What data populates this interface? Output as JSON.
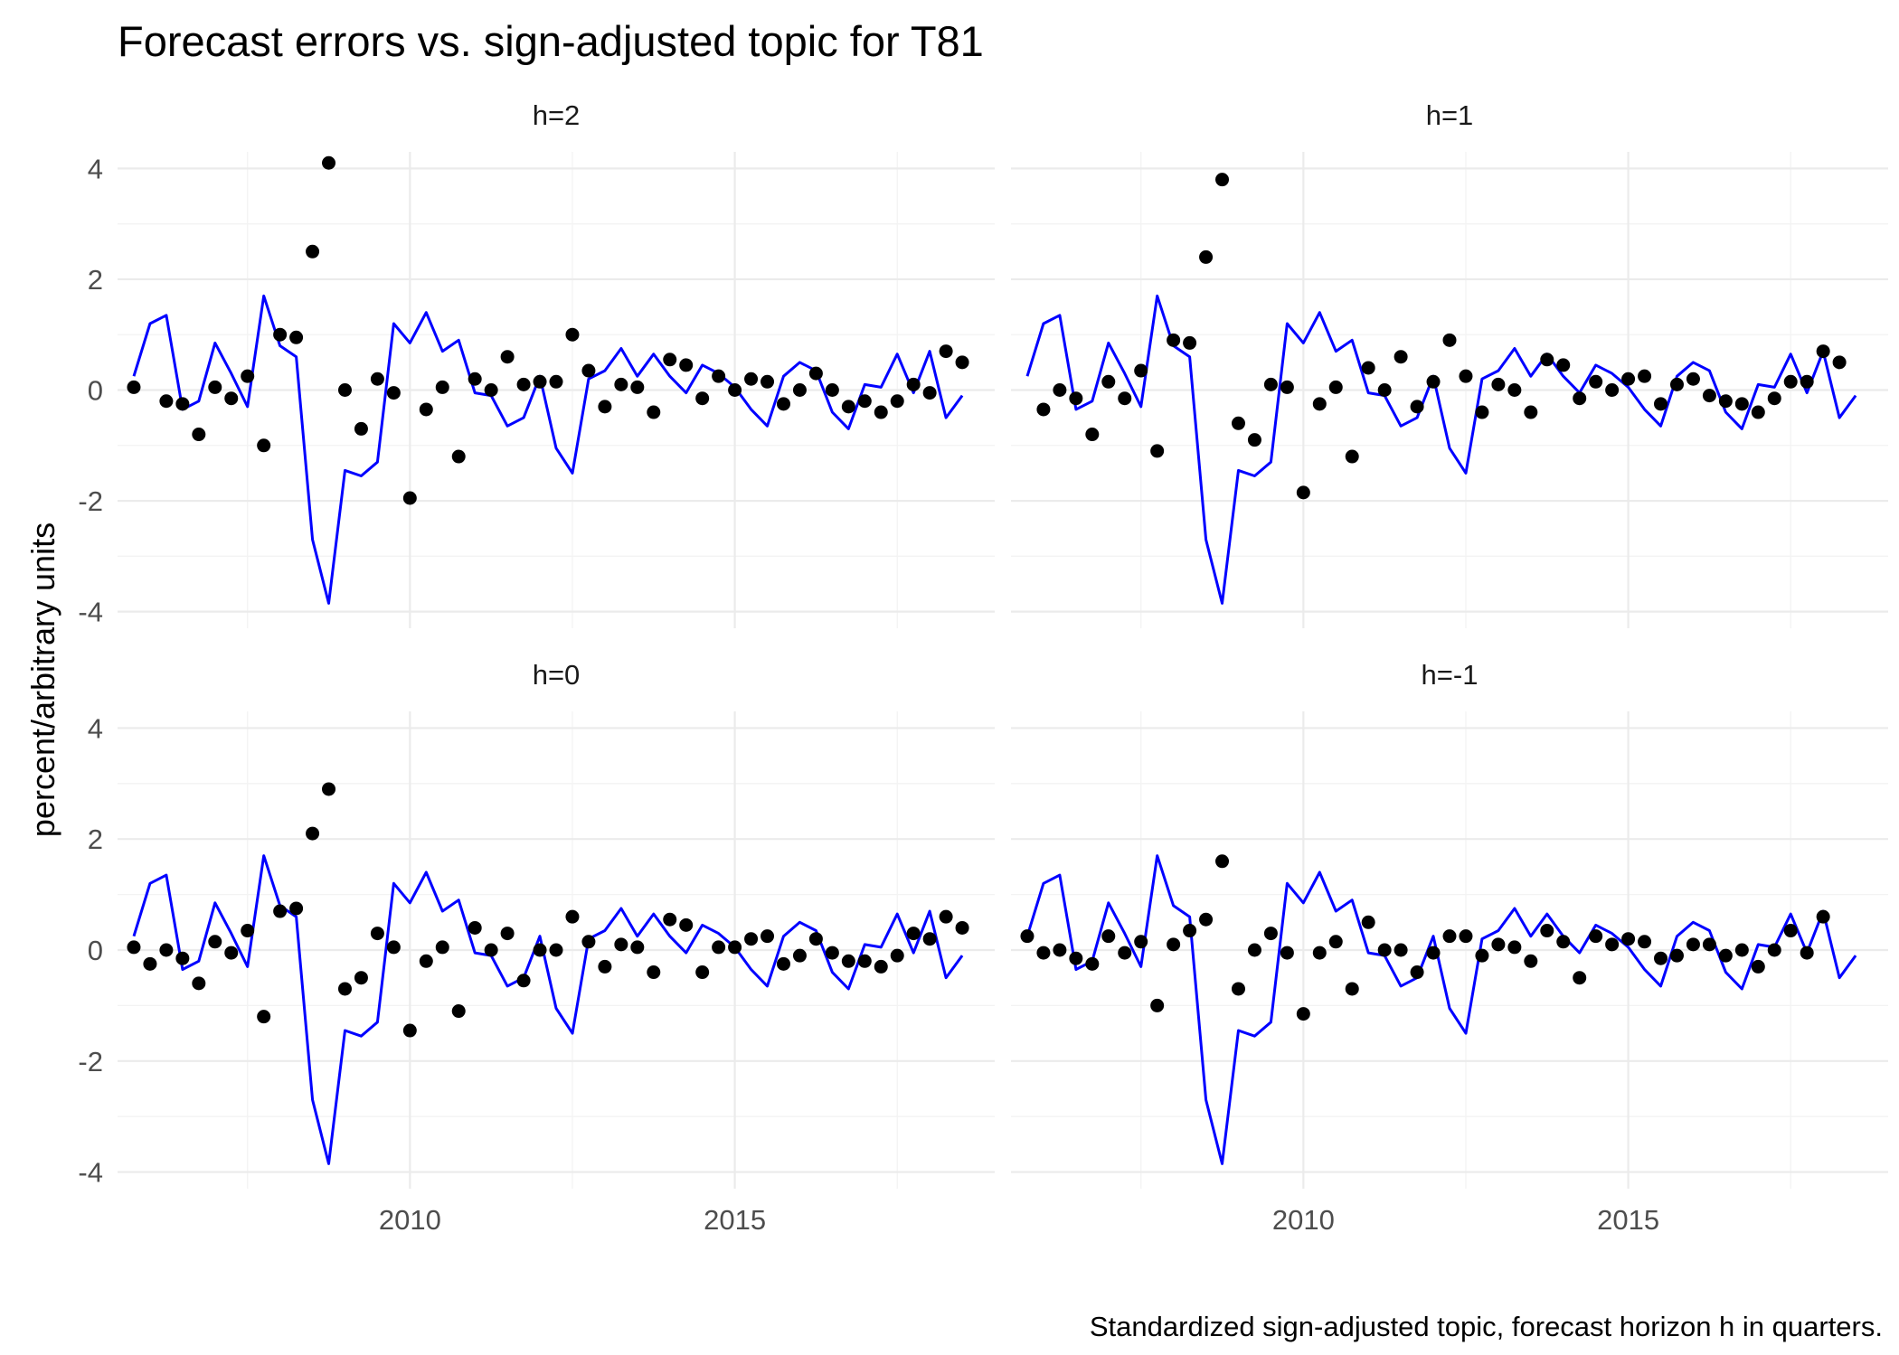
{
  "colors": {
    "line": "#0000ff",
    "points": "#000000",
    "grid": "#ebebeb",
    "background": "#ffffff"
  },
  "chart_data": {
    "type": "line+scatter",
    "title": "Forecast errors vs. sign-adjusted topic for T81",
    "ylabel": "percent/arbitrary units",
    "xlabel": "",
    "caption": "Standardized sign-adjusted topic, forecast horizon h in quarters.",
    "xlim": [
      2005.5,
      2019.0
    ],
    "ylim": [
      -4.3,
      4.3
    ],
    "x_ticks": [
      2010,
      2015
    ],
    "y_ticks": [
      -4,
      -2,
      0,
      2,
      4
    ],
    "layout": "2x2 facets, shared x and y axes, grid on",
    "line_series": {
      "name": "Standardized sign-adjusted topic",
      "color": "#0000ff",
      "x": [
        2005.75,
        2006.0,
        2006.25,
        2006.5,
        2006.75,
        2007.0,
        2007.25,
        2007.5,
        2007.75,
        2008.0,
        2008.25,
        2008.5,
        2008.75,
        2009.0,
        2009.25,
        2009.5,
        2009.75,
        2010.0,
        2010.25,
        2010.5,
        2010.75,
        2011.0,
        2011.25,
        2011.5,
        2011.75,
        2012.0,
        2012.25,
        2012.5,
        2012.75,
        2013.0,
        2013.25,
        2013.5,
        2013.75,
        2014.0,
        2014.25,
        2014.5,
        2014.75,
        2015.0,
        2015.25,
        2015.5,
        2015.75,
        2016.0,
        2016.25,
        2016.5,
        2016.75,
        2017.0,
        2017.25,
        2017.5,
        2017.75,
        2018.0,
        2018.25,
        2018.5,
        2018.75
      ],
      "values": [
        0.25,
        1.2,
        1.35,
        -0.35,
        -0.2,
        0.85,
        0.3,
        -0.3,
        1.7,
        0.8,
        0.6,
        -2.7,
        -3.85,
        -1.45,
        -1.55,
        -1.3,
        1.2,
        0.85,
        1.4,
        0.7,
        0.9,
        -0.05,
        -0.1,
        -0.65,
        -0.5,
        0.25,
        -1.05,
        -1.5,
        0.2,
        0.35,
        0.75,
        0.25,
        0.65,
        0.25,
        -0.05,
        0.45,
        0.3,
        0.05,
        -0.35,
        -0.65,
        0.25,
        0.5,
        0.35,
        -0.4,
        -0.7,
        0.1,
        0.05,
        0.65,
        -0.05,
        0.7,
        -0.5,
        -0.1,
        null
      ]
    },
    "facets": [
      {
        "label": "h=2",
        "points_x": [
          2005.75,
          2006.25,
          2006.5,
          2006.75,
          2007.0,
          2007.25,
          2007.5,
          2007.75,
          2008.0,
          2008.25,
          2008.5,
          2008.75,
          2009.0,
          2009.25,
          2009.5,
          2009.75,
          2010.0,
          2010.25,
          2010.5,
          2010.75,
          2011.0,
          2011.25,
          2011.5,
          2011.75,
          2012.0,
          2012.25,
          2012.5,
          2012.75,
          2013.0,
          2013.25,
          2013.5,
          2013.75,
          2014.0,
          2014.25,
          2014.5,
          2014.75,
          2015.0,
          2015.25,
          2015.5,
          2015.75,
          2016.0,
          2016.25,
          2016.5,
          2016.75,
          2017.0,
          2017.25,
          2017.5,
          2017.75,
          2018.0,
          2018.25,
          2018.5,
          2018.75
        ],
        "points_y": [
          0.05,
          -0.2,
          -0.25,
          -0.8,
          0.05,
          -0.15,
          0.25,
          -1.0,
          1.0,
          0.95,
          2.5,
          4.1,
          -0.0,
          -0.7,
          0.2,
          -0.05,
          -1.95,
          -0.35,
          0.05,
          -1.2,
          0.2,
          0.0,
          0.6,
          0.1,
          0.15,
          0.15,
          1.0,
          0.35,
          -0.3,
          0.1,
          0.05,
          -0.4,
          0.55,
          0.45,
          -0.15,
          0.25,
          -0.0,
          0.2,
          0.15,
          -0.25,
          0.0,
          0.3,
          -0.0,
          -0.3,
          -0.2,
          -0.4,
          -0.2,
          0.1,
          -0.05,
          0.7,
          0.5,
          null
        ]
      },
      {
        "label": "h=1",
        "points_x": [
          2006.0,
          2006.25,
          2006.5,
          2006.75,
          2007.0,
          2007.25,
          2007.5,
          2007.75,
          2008.0,
          2008.25,
          2008.5,
          2008.75,
          2009.0,
          2009.25,
          2009.5,
          2009.75,
          2010.0,
          2010.25,
          2010.5,
          2010.75,
          2011.0,
          2011.25,
          2011.5,
          2011.75,
          2012.0,
          2012.25,
          2012.5,
          2012.75,
          2013.0,
          2013.25,
          2013.5,
          2013.75,
          2014.0,
          2014.25,
          2014.5,
          2014.75,
          2015.0,
          2015.25,
          2015.5,
          2015.75,
          2016.0,
          2016.25,
          2016.5,
          2016.75,
          2017.0,
          2017.25,
          2017.5,
          2017.75,
          2018.0,
          2018.25,
          2018.5,
          2018.75
        ],
        "points_y": [
          -0.35,
          0.0,
          -0.15,
          -0.8,
          0.15,
          -0.15,
          0.35,
          -1.1,
          0.9,
          0.85,
          2.4,
          3.8,
          -0.6,
          -0.9,
          0.1,
          0.05,
          -1.85,
          -0.25,
          0.05,
          -1.2,
          0.4,
          0.0,
          0.6,
          -0.3,
          0.15,
          0.9,
          0.25,
          -0.4,
          0.1,
          0.0,
          -0.4,
          0.55,
          0.45,
          -0.15,
          0.15,
          -0.0,
          0.2,
          0.25,
          -0.25,
          0.1,
          0.2,
          -0.1,
          -0.2,
          -0.25,
          -0.4,
          -0.15,
          0.15,
          0.15,
          0.7,
          0.5,
          null,
          null
        ]
      },
      {
        "label": "h=0",
        "points_x": [
          2005.75,
          2006.0,
          2006.25,
          2006.5,
          2006.75,
          2007.0,
          2007.25,
          2007.5,
          2007.75,
          2008.0,
          2008.25,
          2008.5,
          2008.75,
          2009.0,
          2009.25,
          2009.5,
          2009.75,
          2010.0,
          2010.25,
          2010.5,
          2010.75,
          2011.0,
          2011.25,
          2011.5,
          2011.75,
          2012.0,
          2012.25,
          2012.5,
          2012.75,
          2013.0,
          2013.25,
          2013.5,
          2013.75,
          2014.0,
          2014.25,
          2014.5,
          2014.75,
          2015.0,
          2015.25,
          2015.5,
          2015.75,
          2016.0,
          2016.25,
          2016.5,
          2016.75,
          2017.0,
          2017.25,
          2017.5,
          2017.75,
          2018.0,
          2018.25,
          2018.5
        ],
        "points_y": [
          0.05,
          -0.25,
          0.0,
          -0.15,
          -0.6,
          0.15,
          -0.05,
          0.35,
          -1.2,
          0.7,
          0.75,
          2.1,
          2.9,
          -0.7,
          -0.5,
          0.3,
          0.05,
          -1.45,
          -0.2,
          0.05,
          -1.1,
          0.4,
          0.0,
          0.3,
          -0.55,
          0.0,
          0.0,
          0.6,
          0.15,
          -0.3,
          0.1,
          0.05,
          -0.4,
          0.55,
          0.45,
          -0.4,
          0.05,
          0.05,
          0.2,
          0.25,
          -0.25,
          -0.1,
          0.2,
          -0.05,
          -0.2,
          -0.2,
          -0.3,
          -0.1,
          0.3,
          0.2,
          0.6,
          0.4
        ]
      },
      {
        "label": "h=-1",
        "points_x": [
          2005.75,
          2006.0,
          2006.25,
          2006.5,
          2006.75,
          2007.0,
          2007.25,
          2007.5,
          2007.75,
          2008.0,
          2008.25,
          2008.5,
          2008.75,
          2009.0,
          2009.25,
          2009.5,
          2009.75,
          2010.0,
          2010.25,
          2010.5,
          2010.75,
          2011.0,
          2011.25,
          2011.5,
          2011.75,
          2012.0,
          2012.25,
          2012.5,
          2012.75,
          2013.0,
          2013.25,
          2013.5,
          2013.75,
          2014.0,
          2014.25,
          2014.5,
          2014.75,
          2015.0,
          2015.25,
          2015.5,
          2015.75,
          2016.0,
          2016.25,
          2016.5,
          2016.75,
          2017.0,
          2017.25,
          2017.5,
          2017.75,
          2018.0,
          2018.25,
          2018.5
        ],
        "points_y": [
          0.25,
          -0.05,
          0.0,
          -0.15,
          -0.25,
          0.25,
          -0.05,
          0.15,
          -1.0,
          0.1,
          0.35,
          0.55,
          1.6,
          -0.7,
          -0.0,
          0.3,
          -0.05,
          -1.15,
          -0.05,
          0.15,
          -0.7,
          0.5,
          0.0,
          -0.0,
          -0.4,
          -0.05,
          0.25,
          0.25,
          -0.1,
          0.1,
          0.05,
          -0.2,
          0.35,
          0.15,
          -0.5,
          0.25,
          0.1,
          0.2,
          0.15,
          -0.15,
          -0.1,
          0.1,
          0.1,
          -0.1,
          0.0,
          -0.3,
          -0.0,
          0.35,
          -0.05,
          0.6,
          null,
          null
        ]
      }
    ]
  }
}
